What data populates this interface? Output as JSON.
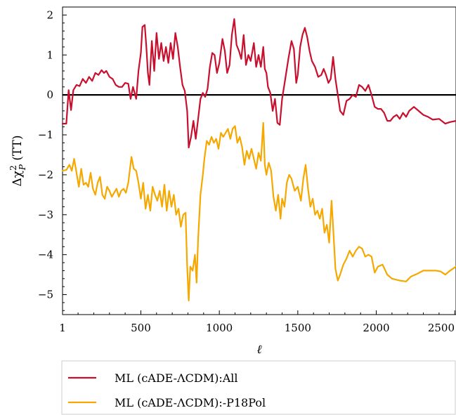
{
  "chart_data": {
    "type": "line",
    "title": "",
    "xlabel": "ℓ",
    "ylabel": "Δχ²P (TT)",
    "ylabel_parts": {
      "base": "Δχ",
      "sup": "2",
      "sub": "P",
      "suffix": " (TT)"
    },
    "xlim": [
      1,
      2508
    ],
    "ylim": [
      -5.5,
      2.2
    ],
    "xticks": [
      1,
      500,
      1000,
      1500,
      2000,
      2500
    ],
    "xtick_labels": [
      "1",
      "500",
      "1000",
      "1500",
      "2000",
      "2500"
    ],
    "yticks": [
      2,
      1,
      0,
      -1,
      -2,
      -3,
      -4,
      -5
    ],
    "ytick_labels": [
      "2",
      "1",
      "0",
      "−1",
      "−2",
      "−3",
      "−4",
      "−5"
    ],
    "reference_line": {
      "y": 0,
      "color": "#000000"
    },
    "legend_placement": "below-left",
    "series": [
      {
        "name": "ML (cADE-ΛCDM):All",
        "color": "#c8102e",
        "points": [
          [
            1,
            -0.72
          ],
          [
            25,
            -0.72
          ],
          [
            40,
            0.12
          ],
          [
            55,
            -0.38
          ],
          [
            70,
            0.12
          ],
          [
            90,
            0.25
          ],
          [
            110,
            0.22
          ],
          [
            130,
            0.4
          ],
          [
            150,
            0.3
          ],
          [
            170,
            0.45
          ],
          [
            190,
            0.35
          ],
          [
            210,
            0.55
          ],
          [
            230,
            0.5
          ],
          [
            250,
            0.62
          ],
          [
            265,
            0.55
          ],
          [
            280,
            0.6
          ],
          [
            300,
            0.45
          ],
          [
            320,
            0.4
          ],
          [
            340,
            0.25
          ],
          [
            360,
            0.2
          ],
          [
            380,
            0.2
          ],
          [
            400,
            0.3
          ],
          [
            420,
            0.28
          ],
          [
            435,
            -0.1
          ],
          [
            450,
            0.2
          ],
          [
            470,
            -0.1
          ],
          [
            485,
            0.6
          ],
          [
            500,
            1.05
          ],
          [
            510,
            1.7
          ],
          [
            525,
            1.75
          ],
          [
            535,
            1.2
          ],
          [
            545,
            0.55
          ],
          [
            555,
            0.25
          ],
          [
            570,
            1.35
          ],
          [
            585,
            0.6
          ],
          [
            600,
            1.55
          ],
          [
            615,
            0.9
          ],
          [
            630,
            1.3
          ],
          [
            645,
            0.85
          ],
          [
            660,
            1.2
          ],
          [
            675,
            0.8
          ],
          [
            690,
            1.3
          ],
          [
            705,
            0.9
          ],
          [
            720,
            1.55
          ],
          [
            735,
            1.2
          ],
          [
            750,
            0.7
          ],
          [
            765,
            0.25
          ],
          [
            780,
            0.1
          ],
          [
            795,
            -0.4
          ],
          [
            805,
            -1.32
          ],
          [
            820,
            -1.05
          ],
          [
            835,
            -0.65
          ],
          [
            850,
            -1.1
          ],
          [
            865,
            -0.6
          ],
          [
            880,
            -0.1
          ],
          [
            895,
            0.05
          ],
          [
            910,
            -0.05
          ],
          [
            925,
            0.15
          ],
          [
            940,
            0.7
          ],
          [
            955,
            1.05
          ],
          [
            970,
            1.0
          ],
          [
            985,
            0.55
          ],
          [
            1000,
            0.8
          ],
          [
            1020,
            1.4
          ],
          [
            1035,
            1.1
          ],
          [
            1050,
            0.55
          ],
          [
            1065,
            0.75
          ],
          [
            1080,
            1.5
          ],
          [
            1095,
            1.9
          ],
          [
            1110,
            1.25
          ],
          [
            1125,
            1.1
          ],
          [
            1140,
            0.9
          ],
          [
            1155,
            1.5
          ],
          [
            1170,
            0.75
          ],
          [
            1185,
            1.0
          ],
          [
            1200,
            0.85
          ],
          [
            1220,
            1.3
          ],
          [
            1235,
            0.7
          ],
          [
            1250,
            1.0
          ],
          [
            1265,
            0.7
          ],
          [
            1280,
            1.2
          ],
          [
            1290,
            0.65
          ],
          [
            1300,
            0.55
          ],
          [
            1310,
            0.2
          ],
          [
            1325,
            0.05
          ],
          [
            1340,
            -0.4
          ],
          [
            1355,
            -0.1
          ],
          [
            1370,
            -0.7
          ],
          [
            1385,
            -0.75
          ],
          [
            1400,
            -0.1
          ],
          [
            1420,
            0.4
          ],
          [
            1440,
            0.9
          ],
          [
            1460,
            1.35
          ],
          [
            1475,
            1.15
          ],
          [
            1490,
            0.3
          ],
          [
            1500,
            0.5
          ],
          [
            1515,
            1.2
          ],
          [
            1530,
            1.5
          ],
          [
            1545,
            1.68
          ],
          [
            1560,
            1.45
          ],
          [
            1575,
            1.1
          ],
          [
            1590,
            0.85
          ],
          [
            1610,
            0.7
          ],
          [
            1630,
            0.45
          ],
          [
            1650,
            0.5
          ],
          [
            1665,
            0.65
          ],
          [
            1680,
            0.5
          ],
          [
            1695,
            0.3
          ],
          [
            1710,
            0.4
          ],
          [
            1725,
            0.95
          ],
          [
            1740,
            0.4
          ],
          [
            1755,
            0.0
          ],
          [
            1770,
            -0.4
          ],
          [
            1790,
            -0.5
          ],
          [
            1810,
            -0.15
          ],
          [
            1830,
            -0.1
          ],
          [
            1850,
            0.0
          ],
          [
            1870,
            -0.05
          ],
          [
            1890,
            0.25
          ],
          [
            1910,
            0.2
          ],
          [
            1930,
            0.1
          ],
          [
            1950,
            0.25
          ],
          [
            1970,
            0.0
          ],
          [
            1990,
            -0.3
          ],
          [
            2010,
            -0.35
          ],
          [
            2030,
            -0.35
          ],
          [
            2050,
            -0.45
          ],
          [
            2070,
            -0.65
          ],
          [
            2090,
            -0.65
          ],
          [
            2110,
            -0.55
          ],
          [
            2130,
            -0.5
          ],
          [
            2150,
            -0.6
          ],
          [
            2170,
            -0.45
          ],
          [
            2190,
            -0.55
          ],
          [
            2210,
            -0.4
          ],
          [
            2240,
            -0.3
          ],
          [
            2270,
            -0.4
          ],
          [
            2300,
            -0.5
          ],
          [
            2330,
            -0.55
          ],
          [
            2360,
            -0.62
          ],
          [
            2400,
            -0.6
          ],
          [
            2440,
            -0.72
          ],
          [
            2470,
            -0.68
          ],
          [
            2508,
            -0.65
          ]
        ]
      },
      {
        "name": "ML (cADE-ΛCDM):-P18Pol",
        "color": "#f5a800",
        "points": [
          [
            1,
            -1.9
          ],
          [
            25,
            -1.88
          ],
          [
            45,
            -1.75
          ],
          [
            60,
            -1.9
          ],
          [
            75,
            -1.6
          ],
          [
            90,
            -1.95
          ],
          [
            105,
            -2.3
          ],
          [
            120,
            -1.85
          ],
          [
            135,
            -2.25
          ],
          [
            150,
            -2.2
          ],
          [
            165,
            -2.3
          ],
          [
            180,
            -1.95
          ],
          [
            195,
            -2.35
          ],
          [
            210,
            -2.5
          ],
          [
            225,
            -2.2
          ],
          [
            240,
            -2.05
          ],
          [
            255,
            -2.5
          ],
          [
            270,
            -2.6
          ],
          [
            285,
            -2.3
          ],
          [
            300,
            -2.4
          ],
          [
            315,
            -2.55
          ],
          [
            330,
            -2.45
          ],
          [
            345,
            -2.35
          ],
          [
            360,
            -2.55
          ],
          [
            375,
            -2.4
          ],
          [
            390,
            -2.35
          ],
          [
            405,
            -2.45
          ],
          [
            420,
            -2.2
          ],
          [
            440,
            -1.55
          ],
          [
            455,
            -1.85
          ],
          [
            470,
            -1.9
          ],
          [
            485,
            -2.2
          ],
          [
            500,
            -2.6
          ],
          [
            515,
            -2.2
          ],
          [
            530,
            -2.85
          ],
          [
            545,
            -2.5
          ],
          [
            560,
            -2.9
          ],
          [
            575,
            -2.3
          ],
          [
            590,
            -2.5
          ],
          [
            605,
            -2.65
          ],
          [
            620,
            -2.4
          ],
          [
            635,
            -2.8
          ],
          [
            650,
            -2.25
          ],
          [
            665,
            -2.9
          ],
          [
            680,
            -2.4
          ],
          [
            695,
            -2.8
          ],
          [
            710,
            -2.5
          ],
          [
            725,
            -3.0
          ],
          [
            740,
            -2.85
          ],
          [
            755,
            -3.3
          ],
          [
            770,
            -3.0
          ],
          [
            785,
            -2.95
          ],
          [
            795,
            -4.3
          ],
          [
            805,
            -5.15
          ],
          [
            815,
            -4.3
          ],
          [
            830,
            -4.4
          ],
          [
            845,
            -4.0
          ],
          [
            855,
            -4.7
          ],
          [
            865,
            -3.6
          ],
          [
            880,
            -2.5
          ],
          [
            895,
            -2.0
          ],
          [
            905,
            -1.6
          ],
          [
            920,
            -1.15
          ],
          [
            935,
            -1.25
          ],
          [
            950,
            -1.05
          ],
          [
            965,
            -1.2
          ],
          [
            980,
            -1.1
          ],
          [
            995,
            -1.35
          ],
          [
            1010,
            -0.95
          ],
          [
            1025,
            -1.05
          ],
          [
            1040,
            -0.95
          ],
          [
            1055,
            -0.85
          ],
          [
            1070,
            -1.1
          ],
          [
            1085,
            -0.85
          ],
          [
            1100,
            -0.78
          ],
          [
            1115,
            -1.2
          ],
          [
            1130,
            -1.05
          ],
          [
            1145,
            -1.3
          ],
          [
            1160,
            -1.75
          ],
          [
            1175,
            -1.4
          ],
          [
            1190,
            -1.6
          ],
          [
            1205,
            -1.35
          ],
          [
            1220,
            -1.6
          ],
          [
            1235,
            -1.85
          ],
          [
            1250,
            -1.45
          ],
          [
            1265,
            -1.65
          ],
          [
            1280,
            -0.7
          ],
          [
            1290,
            -1.75
          ],
          [
            1300,
            -2.0
          ],
          [
            1315,
            -1.7
          ],
          [
            1330,
            -1.9
          ],
          [
            1345,
            -2.55
          ],
          [
            1360,
            -2.9
          ],
          [
            1375,
            -2.5
          ],
          [
            1390,
            -3.1
          ],
          [
            1400,
            -2.6
          ],
          [
            1415,
            -2.8
          ],
          [
            1430,
            -2.2
          ],
          [
            1445,
            -2.0
          ],
          [
            1460,
            -2.1
          ],
          [
            1480,
            -2.4
          ],
          [
            1500,
            -2.3
          ],
          [
            1520,
            -2.65
          ],
          [
            1535,
            -2.1
          ],
          [
            1550,
            -1.75
          ],
          [
            1565,
            -2.35
          ],
          [
            1580,
            -2.8
          ],
          [
            1595,
            -2.6
          ],
          [
            1610,
            -3.0
          ],
          [
            1625,
            -2.9
          ],
          [
            1640,
            -3.1
          ],
          [
            1655,
            -2.85
          ],
          [
            1670,
            -3.45
          ],
          [
            1685,
            -3.25
          ],
          [
            1700,
            -3.7
          ],
          [
            1715,
            -2.65
          ],
          [
            1725,
            -3.3
          ],
          [
            1740,
            -4.35
          ],
          [
            1755,
            -4.65
          ],
          [
            1770,
            -4.5
          ],
          [
            1790,
            -4.25
          ],
          [
            1810,
            -4.1
          ],
          [
            1830,
            -3.9
          ],
          [
            1850,
            -4.05
          ],
          [
            1870,
            -3.9
          ],
          [
            1890,
            -3.8
          ],
          [
            1910,
            -3.85
          ],
          [
            1930,
            -4.05
          ],
          [
            1950,
            -4.0
          ],
          [
            1970,
            -4.05
          ],
          [
            1990,
            -4.45
          ],
          [
            2010,
            -4.3
          ],
          [
            2040,
            -4.25
          ],
          [
            2070,
            -4.5
          ],
          [
            2100,
            -4.6
          ],
          [
            2150,
            -4.65
          ],
          [
            2190,
            -4.67
          ],
          [
            2220,
            -4.55
          ],
          [
            2260,
            -4.48
          ],
          [
            2300,
            -4.4
          ],
          [
            2340,
            -4.4
          ],
          [
            2380,
            -4.4
          ],
          [
            2410,
            -4.42
          ],
          [
            2440,
            -4.5
          ],
          [
            2470,
            -4.4
          ],
          [
            2508,
            -4.3
          ]
        ]
      }
    ]
  }
}
